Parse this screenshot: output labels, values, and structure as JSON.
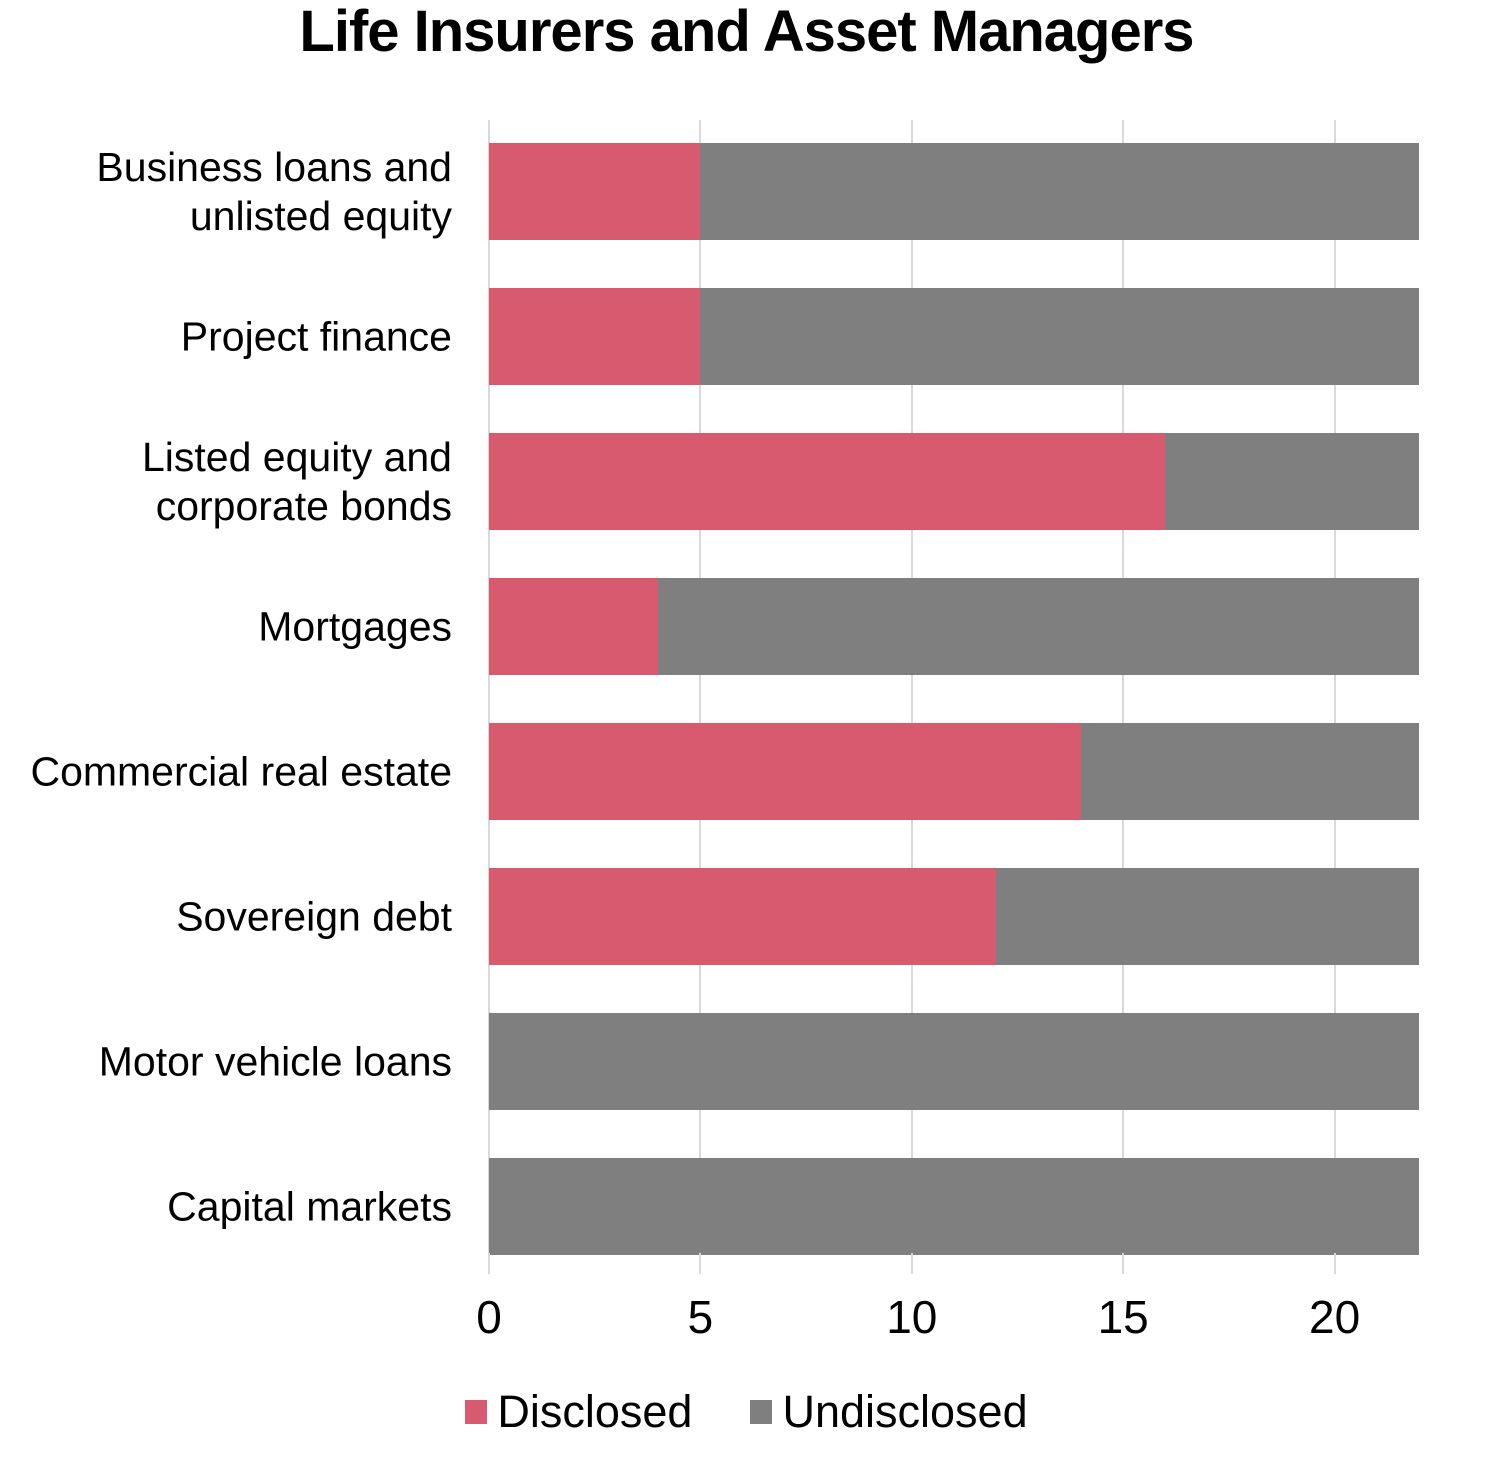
{
  "title": "Life Insurers and Asset Managers",
  "chart_data": {
    "type": "bar",
    "orientation": "horizontal",
    "stacked": true,
    "title": "Life Insurers and Asset Managers",
    "categories": [
      "Business loans and unlisted equity",
      "Project finance",
      "Listed equity and corporate bonds",
      "Mortgages",
      "Commercial real estate",
      "Sovereign debt",
      "Motor vehicle loans",
      "Capital markets"
    ],
    "series": [
      {
        "name": "Disclosed",
        "color": "#D85A6F",
        "values": [
          5,
          5,
          16,
          4,
          14,
          12,
          0,
          0
        ]
      },
      {
        "name": "Undisclosed",
        "color": "#7F7F7F",
        "values": [
          17,
          17,
          6,
          18,
          8,
          10,
          22,
          22
        ]
      }
    ],
    "bar_total": 22,
    "xlim": [
      0,
      22
    ],
    "x_ticks": [
      0,
      5,
      10,
      15,
      20
    ],
    "grid": "vertical",
    "gridline_color": "#D9D9D9",
    "legend_position": "bottom",
    "xlabel": "",
    "ylabel": ""
  }
}
